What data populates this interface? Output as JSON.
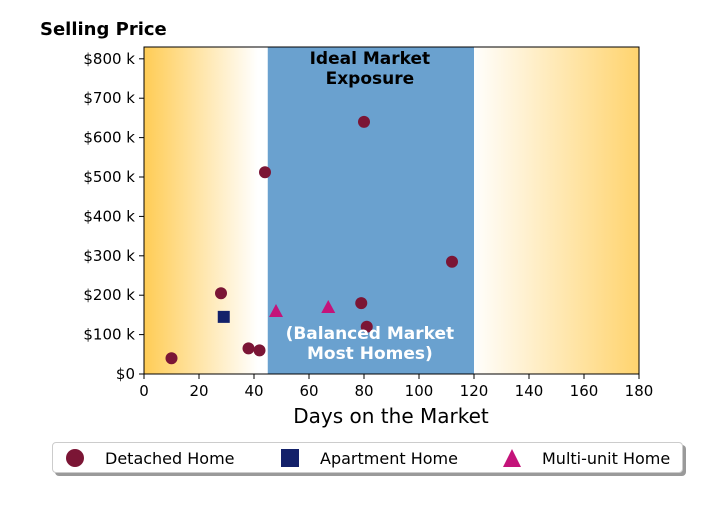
{
  "chart_data": {
    "type": "scatter",
    "title": "",
    "xlabel": "Days on the Market",
    "ylabel": "Selling Price",
    "xlim": [
      0,
      180
    ],
    "ylim": [
      0,
      830000
    ],
    "x_ticks": [
      0,
      20,
      40,
      60,
      80,
      100,
      120,
      140,
      160,
      180
    ],
    "x_tick_labels": [
      "0",
      "20",
      "40",
      "60",
      "80",
      "100",
      "120",
      "140",
      "160",
      "180"
    ],
    "y_ticks": [
      0,
      100000,
      200000,
      300000,
      400000,
      500000,
      600000,
      700000,
      800000
    ],
    "y_tick_labels": [
      "$0",
      "$100 k",
      "$200 k",
      "$300 k",
      "$400 k",
      "$500 k",
      "$600 k",
      "$700 k",
      "$800 k"
    ],
    "grid": false,
    "legend_position": "bottom",
    "band": {
      "x_start": 45,
      "x_end": 120,
      "color": "#6aa1cf",
      "label_top": "Ideal Market\nExposure",
      "label_bottom": "(Balanced Market\nMost Homes)"
    },
    "background_gradient_color": "#ffcc55",
    "series": [
      {
        "name": "Detached Home",
        "marker": "circle",
        "color": "#7b1535",
        "points": [
          {
            "x": 10,
            "y": 40000
          },
          {
            "x": 28,
            "y": 205000
          },
          {
            "x": 38,
            "y": 65000
          },
          {
            "x": 42,
            "y": 60000
          },
          {
            "x": 44,
            "y": 512000
          },
          {
            "x": 79,
            "y": 180000
          },
          {
            "x": 80,
            "y": 640000
          },
          {
            "x": 81,
            "y": 120000
          },
          {
            "x": 112,
            "y": 285000
          }
        ]
      },
      {
        "name": "Apartment Home",
        "marker": "square",
        "color": "#13216a",
        "points": [
          {
            "x": 29,
            "y": 145000
          }
        ]
      },
      {
        "name": "Multi-unit Home",
        "marker": "triangle",
        "color": "#c4137a",
        "points": [
          {
            "x": 48,
            "y": 160000
          },
          {
            "x": 67,
            "y": 170000
          }
        ]
      }
    ]
  }
}
